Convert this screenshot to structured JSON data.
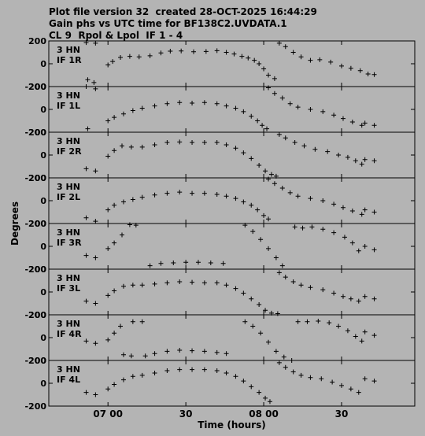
{
  "header": {
    "line1": "Plot file version 32  created 28-OCT-2025 16:44:29",
    "line2": "Gain phs vs UTC time for BF138C2.UVDATA.1",
    "line3": "CL 9  Rpol & Lpol  IF 1 - 4"
  },
  "chart_data": {
    "type": "scatter",
    "marker": "plus",
    "xlabel": "Time (hours)",
    "ylabel": "Degrees",
    "xticks": [
      {
        "value": 7.0,
        "label": "07 00"
      },
      {
        "value": 7.5,
        "label": "30"
      },
      {
        "value": 8.0,
        "label": "08 00"
      },
      {
        "value": 8.5,
        "label": "30"
      }
    ],
    "xlim": [
      6.62,
      8.97
    ],
    "ylim": [
      -200,
      200
    ],
    "yticks": [
      200,
      0,
      -200
    ],
    "panels": [
      {
        "antenna": "3 HN",
        "label": "IF 1R",
        "segments": [
          {
            "x": [
              6.86,
              6.92
            ],
            "y": [
              185,
              180
            ]
          },
          {
            "x": [
              6.87,
              6.91
            ],
            "y": [
              -140,
              -165
            ]
          },
          {
            "x": [
              7.0,
              7.03,
              7.08,
              7.14,
              7.2,
              7.27,
              7.34,
              7.4,
              7.47,
              7.55,
              7.63,
              7.7,
              7.76,
              7.81,
              7.86,
              7.9,
              7.94,
              7.97,
              8.0,
              8.03,
              8.07
            ],
            "y": [
              -10,
              20,
              55,
              65,
              60,
              70,
              95,
              110,
              112,
              105,
              108,
              115,
              100,
              85,
              65,
              50,
              30,
              0,
              -45,
              -100,
              -130
            ]
          },
          {
            "x": [
              8.1,
              8.14,
              8.19,
              8.24,
              8.3,
              8.36,
              8.43,
              8.5,
              8.56,
              8.62,
              8.67,
              8.71
            ],
            "y": [
              180,
              150,
              100,
              60,
              30,
              35,
              15,
              -20,
              -40,
              -60,
              -90,
              -95
            ]
          }
        ]
      },
      {
        "antenna": "3 HN",
        "label": "IF 1L",
        "segments": [
          {
            "x": [
              6.86,
              6.92
            ],
            "y": [
              200,
              180
            ]
          },
          {
            "x": [
              6.87
            ],
            "y": [
              -170
            ]
          },
          {
            "x": [
              7.0,
              7.04,
              7.1,
              7.16,
              7.22,
              7.3,
              7.38,
              7.46,
              7.54,
              7.62,
              7.7,
              7.76,
              7.82,
              7.87,
              7.92,
              7.96,
              7.99,
              8.02
            ],
            "y": [
              -100,
              -70,
              -40,
              -10,
              10,
              30,
              50,
              60,
              55,
              60,
              50,
              30,
              10,
              -20,
              -60,
              -100,
              -140,
              -170
            ]
          },
          {
            "x": [
              8.03,
              8.07,
              8.12,
              8.17,
              8.22,
              8.3,
              8.38,
              8.45,
              8.51,
              8.57,
              8.63
            ],
            "y": [
              190,
              140,
              100,
              50,
              20,
              0,
              -20,
              -50,
              -80,
              -110,
              -140
            ]
          },
          {
            "x": [
              8.65,
              8.71
            ],
            "y": [
              -120,
              -140
            ]
          }
        ]
      },
      {
        "antenna": "3 HN",
        "label": "IF 2R",
        "segments": [
          {
            "x": [
              6.86,
              6.92
            ],
            "y": [
              -120,
              -140
            ]
          },
          {
            "x": [
              7.0,
              7.04,
              7.09,
              7.15,
              7.22,
              7.3,
              7.38,
              7.46,
              7.54,
              7.62,
              7.7,
              7.76,
              7.82,
              7.87,
              7.92,
              7.97,
              8.01,
              8.05,
              8.08
            ],
            "y": [
              -10,
              40,
              80,
              70,
              70,
              90,
              110,
              115,
              110,
              110,
              110,
              90,
              60,
              20,
              -30,
              -90,
              -140,
              -170,
              -185
            ]
          },
          {
            "x": [
              8.1,
              8.14,
              8.2,
              8.26,
              8.33,
              8.41,
              8.48,
              8.54,
              8.59,
              8.63
            ],
            "y": [
              180,
              150,
              110,
              80,
              50,
              30,
              0,
              -20,
              -50,
              -80
            ]
          },
          {
            "x": [
              8.65,
              8.71
            ],
            "y": [
              -40,
              -50
            ]
          }
        ]
      },
      {
        "antenna": "3 HN",
        "label": "IF 2L",
        "segments": [
          {
            "x": [
              6.86,
              6.92
            ],
            "y": [
              -150,
              -180
            ]
          },
          {
            "x": [
              7.0,
              7.04,
              7.1,
              7.16,
              7.22,
              7.3,
              7.38,
              7.46,
              7.54,
              7.62,
              7.7,
              7.76,
              7.82,
              7.87,
              7.92,
              7.96,
              8.0,
              8.03
            ],
            "y": [
              -80,
              -40,
              -10,
              10,
              30,
              50,
              65,
              75,
              65,
              65,
              55,
              40,
              20,
              -10,
              -40,
              -80,
              -130,
              -160
            ]
          },
          {
            "x": [
              8.03,
              8.07,
              8.12,
              8.17,
              8.22,
              8.3,
              8.38,
              8.45,
              8.51,
              8.57,
              8.63
            ],
            "y": [
              190,
              150,
              110,
              70,
              40,
              20,
              0,
              -30,
              -60,
              -90,
              -120
            ]
          },
          {
            "x": [
              8.65,
              8.71
            ],
            "y": [
              -80,
              -100
            ]
          }
        ]
      },
      {
        "antenna": "3 HN",
        "label": "IF 3R",
        "segments": [
          {
            "x": [
              6.86,
              6.92
            ],
            "y": [
              -80,
              -100
            ]
          },
          {
            "x": [
              7.0,
              7.04,
              7.09,
              7.14,
              7.18
            ],
            "y": [
              -20,
              30,
              100,
              190,
              185
            ]
          },
          {
            "x": [
              7.27,
              7.34,
              7.42,
              7.5,
              7.58,
              7.66,
              7.74
            ],
            "y": [
              -170,
              -150,
              -145,
              -140,
              -140,
              -145,
              -150
            ]
          },
          {
            "x": [
              7.88,
              7.93,
              7.98,
              8.03,
              8.08,
              8.12
            ],
            "y": [
              185,
              130,
              60,
              -20,
              -100,
              -170
            ]
          },
          {
            "x": [
              8.2,
              8.25,
              8.31,
              8.38,
              8.45,
              8.52,
              8.57,
              8.61
            ],
            "y": [
              170,
              160,
              170,
              150,
              120,
              80,
              30,
              -40
            ]
          },
          {
            "x": [
              8.65,
              8.71
            ],
            "y": [
              0,
              -30
            ]
          }
        ]
      },
      {
        "antenna": "3 HN",
        "label": "IF 3L",
        "segments": [
          {
            "x": [
              6.86,
              6.92
            ],
            "y": [
              -80,
              -100
            ]
          },
          {
            "x": [
              7.0,
              7.04,
              7.1,
              7.16,
              7.22,
              7.3,
              7.38,
              7.46,
              7.54,
              7.62,
              7.7,
              7.76,
              7.82,
              7.87,
              7.92,
              7.97,
              8.01,
              8.05,
              8.09
            ],
            "y": [
              -30,
              10,
              50,
              60,
              60,
              70,
              80,
              90,
              85,
              80,
              80,
              60,
              30,
              -10,
              -60,
              -110,
              -160,
              -185,
              -190
            ]
          },
          {
            "x": [
              8.1,
              8.14,
              8.19,
              8.24,
              8.3,
              8.38,
              8.45,
              8.51,
              8.56,
              8.61
            ],
            "y": [
              170,
              130,
              90,
              60,
              40,
              20,
              -10,
              -40,
              -60,
              -80
            ]
          },
          {
            "x": [
              8.65,
              8.71
            ],
            "y": [
              -40,
              -60
            ]
          }
        ]
      },
      {
        "antenna": "3 HN",
        "label": "IF 4R",
        "segments": [
          {
            "x": [
              6.86,
              6.92
            ],
            "y": [
              -30,
              -50
            ]
          },
          {
            "x": [
              7.0,
              7.04,
              7.08
            ],
            "y": [
              -20,
              40,
              100
            ]
          },
          {
            "x": [
              7.16,
              7.22
            ],
            "y": [
              140,
              140
            ]
          },
          {
            "x": [
              7.1,
              7.15
            ],
            "y": [
              -150,
              -160
            ]
          },
          {
            "x": [
              7.24,
              7.3,
              7.38,
              7.46,
              7.54,
              7.62,
              7.7,
              7.76
            ],
            "y": [
              -160,
              -140,
              -120,
              -110,
              -115,
              -120,
              -130,
              -140
            ]
          },
          {
            "x": [
              7.88,
              7.93,
              7.98,
              8.03,
              8.08,
              8.13,
              8.18
            ],
            "y": [
              140,
              100,
              40,
              -40,
              -120,
              -170,
              -200
            ]
          },
          {
            "x": [
              8.22,
              8.28,
              8.35,
              8.42,
              8.48,
              8.54,
              8.59,
              8.63
            ],
            "y": [
              140,
              140,
              145,
              130,
              100,
              60,
              10,
              -30
            ]
          },
          {
            "x": [
              8.65,
              8.71
            ],
            "y": [
              50,
              20
            ]
          }
        ]
      },
      {
        "antenna": "3 HN",
        "label": "IF 4L",
        "segments": [
          {
            "x": [
              6.86,
              6.92
            ],
            "y": [
              -80,
              -100
            ]
          },
          {
            "x": [
              7.0,
              7.04,
              7.1,
              7.16,
              7.22,
              7.3,
              7.38,
              7.46,
              7.54,
              7.62,
              7.7,
              7.76,
              7.82,
              7.87,
              7.92,
              7.97,
              8.01,
              8.04
            ],
            "y": [
              -50,
              -10,
              30,
              60,
              70,
              90,
              110,
              120,
              120,
              120,
              110,
              90,
              60,
              20,
              -30,
              -80,
              -130,
              -160
            ]
          },
          {
            "x": [
              8.1,
              8.14,
              8.19,
              8.24,
              8.3,
              8.37,
              8.44,
              8.5,
              8.56,
              8.61
            ],
            "y": [
              180,
              140,
              100,
              70,
              50,
              40,
              10,
              -20,
              -50,
              -80
            ]
          },
          {
            "x": [
              8.65,
              8.71
            ],
            "y": [
              40,
              20
            ]
          }
        ]
      }
    ]
  }
}
